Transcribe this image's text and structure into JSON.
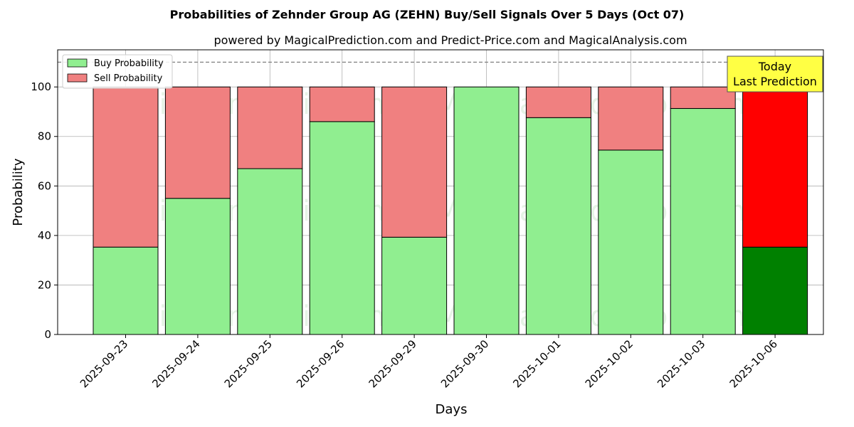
{
  "chart_data": {
    "type": "bar",
    "stacked": true,
    "title": "Probabilities of Zehnder Group AG (ZEHN) Buy/Sell Signals Over 5 Days (Oct 07)",
    "subtitle": "powered by MagicalPrediction.com and Predict-Price.com and MagicalAnalysis.com",
    "xlabel": "Days",
    "ylabel": "Probability",
    "ylim": [
      0,
      115
    ],
    "yticks": [
      0,
      20,
      40,
      60,
      80,
      100
    ],
    "grid": true,
    "legend_position": "top-left",
    "reference_line": {
      "y": 110,
      "style": "dashed"
    },
    "categories": [
      "2025-09-23",
      "2025-09-24",
      "2025-09-25",
      "2025-09-26",
      "2025-09-29",
      "2025-09-30",
      "2025-10-01",
      "2025-10-02",
      "2025-10-03",
      "2025-10-06"
    ],
    "series": [
      {
        "name": "Buy Probability",
        "values": [
          35.3,
          55.0,
          67.0,
          86.0,
          39.3,
          100.0,
          87.6,
          74.5,
          91.3,
          35.3
        ],
        "color": "#90ee90",
        "highlight_color": "#008000"
      },
      {
        "name": "Sell Probability",
        "values": [
          64.7,
          45.0,
          33.0,
          14.0,
          60.7,
          0.0,
          12.4,
          25.5,
          8.7,
          64.7
        ],
        "color": "#f08080",
        "highlight_color": "#ff0000"
      }
    ],
    "highlight_index": 9,
    "annotation": {
      "lines": [
        "Today",
        "Last Prediction"
      ],
      "background": "#ffff44"
    },
    "watermarks": [
      "MagicalAnalysis.com",
      "MagicalPrediction.com",
      "MagicalAnalysis.com",
      "MagicalPrediction.com",
      "MagicalAnalysis.com",
      "MagicalPrediction.com"
    ]
  }
}
